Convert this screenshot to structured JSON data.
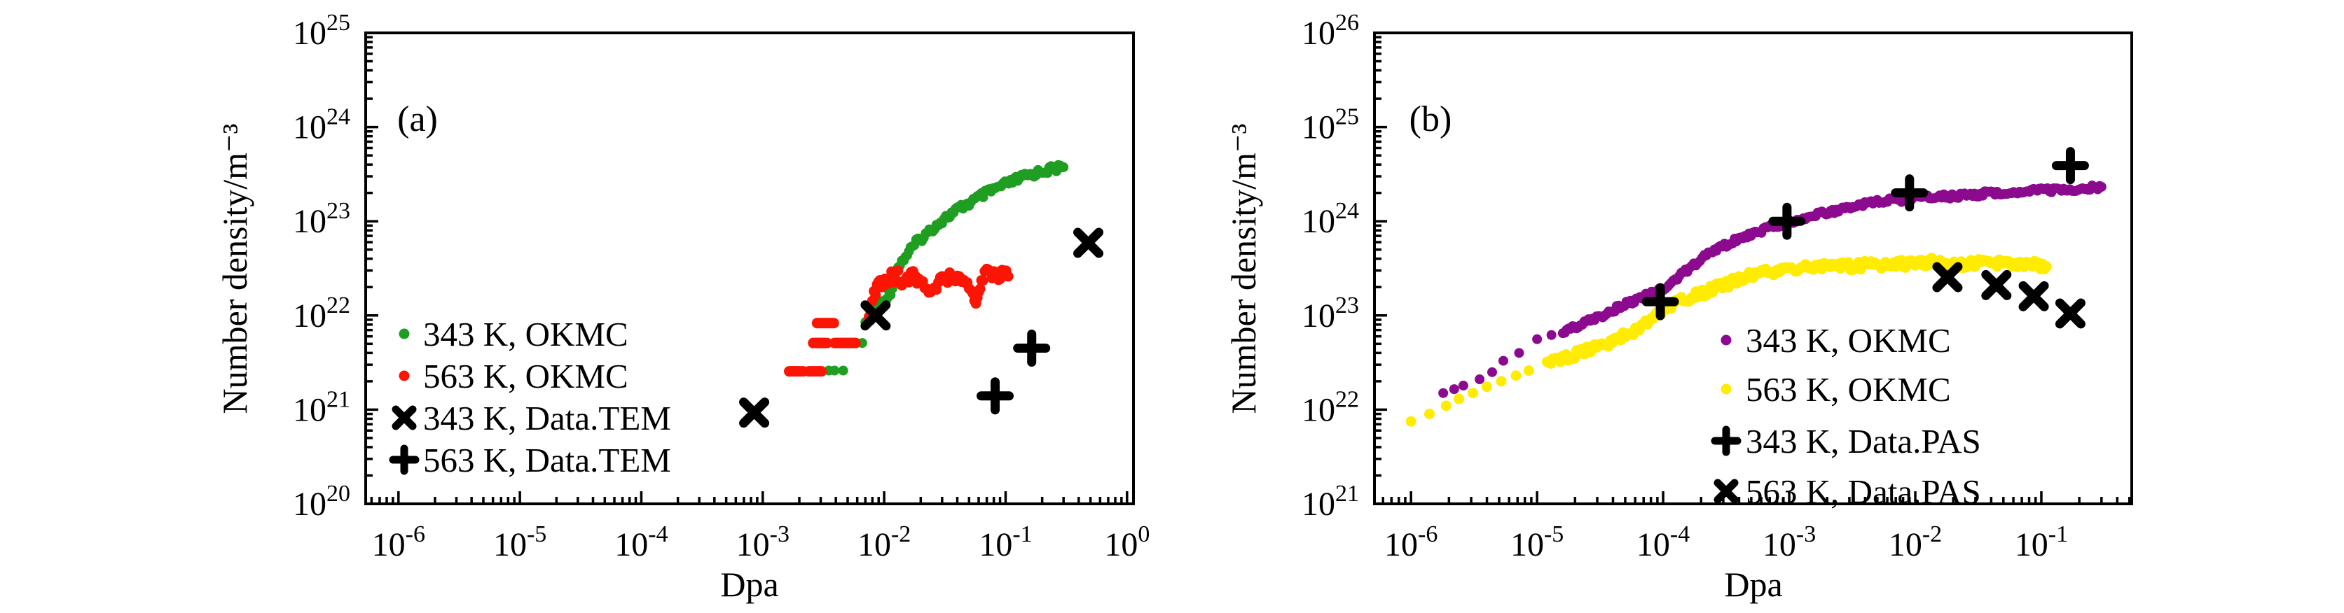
{
  "chart_data": [
    {
      "type": "scatter",
      "panel_label": "(a)",
      "xlabel": "Dpa",
      "ylabel": "Number density/m⁻³",
      "x_scale": "log",
      "y_scale": "log",
      "grid": false,
      "legend_position": "lower-left-inside",
      "x_tick_labels": [
        "10^-6",
        "10^-5",
        "10^-4",
        "10^-3",
        "10^-2",
        "10^-1",
        "10^0"
      ],
      "y_tick_labels": [
        "10^20",
        "10^21",
        "10^22",
        "10^23",
        "10^24",
        "10^25"
      ],
      "xlim_exp": [
        -6.27,
        0.053
      ],
      "ylim_exp": [
        20,
        25
      ],
      "series": [
        {
          "name": "343 K, OKMC",
          "color": "#1f9e21",
          "marker": "dot",
          "dot_radius": 7,
          "band_noise": 5,
          "sparse_points": [
            [
              0.0035,
              2.6e+21
            ],
            [
              0.0039,
              2.6e+21
            ],
            [
              0.0046,
              2.6e+21
            ],
            [
              0.0053,
              5.1e+21
            ],
            [
              0.0059,
              5.1e+21
            ],
            [
              0.0066,
              5.1e+21
            ],
            [
              0.007,
              8.5e+21
            ],
            [
              0.0074,
              8.5e+21
            ]
          ],
          "curve_points": [
            [
              0.0075,
              9e+21
            ],
            [
              0.0082,
              1.05e+22
            ],
            [
              0.009,
              1.2e+22
            ],
            [
              0.01,
              1.45e+22
            ],
            [
              0.0113,
              1.8e+22
            ],
            [
              0.0125,
              2.6e+22
            ],
            [
              0.013,
              3.2e+22
            ],
            [
              0.0145,
              4e+22
            ],
            [
              0.0165,
              5e+22
            ],
            [
              0.019,
              6.2e+22
            ],
            [
              0.022,
              7.2e+22
            ],
            [
              0.026,
              8.8e+22
            ],
            [
              0.03,
              1.02e+23
            ],
            [
              0.036,
              1.2e+23
            ],
            [
              0.043,
              1.4e+23
            ],
            [
              0.052,
              1.6e+23
            ],
            [
              0.063,
              1.85e+23
            ],
            [
              0.076,
              2.1e+23
            ],
            [
              0.092,
              2.35e+23
            ],
            [
              0.11,
              2.6e+23
            ],
            [
              0.135,
              2.9e+23
            ],
            [
              0.165,
              3.15e+23
            ],
            [
              0.2,
              3.4e+23
            ],
            [
              0.245,
              3.6e+23
            ],
            [
              0.3,
              3.75e+23
            ]
          ]
        },
        {
          "name": "563 K, OKMC",
          "color": "#fa1505",
          "marker": "dot",
          "dot_radius": 7.5,
          "band_noise": 9,
          "dash_segments": [
            [
              0.00165,
              0.0022,
              2.55e+21
            ],
            [
              0.0024,
              0.0031,
              2.55e+21
            ],
            [
              0.0026,
              0.0034,
              5.1e+21
            ],
            [
              0.0039,
              0.0059,
              5.1e+21
            ],
            [
              0.0028,
              0.0039,
              8.3e+21
            ]
          ],
          "curve_points": [
            [
              0.0075,
              1.05e+22
            ],
            [
              0.008,
              1.4e+22
            ],
            [
              0.0085,
              1.8e+22
            ],
            [
              0.009,
              2.05e+22
            ],
            [
              0.0095,
              2.2e+22
            ],
            [
              0.0105,
              2.45e+22
            ],
            [
              0.0115,
              2.65e+22
            ],
            [
              0.0125,
              2.6e+22
            ],
            [
              0.0135,
              2.55e+22
            ],
            [
              0.0145,
              2.3e+22
            ],
            [
              0.016,
              2.5e+22
            ],
            [
              0.018,
              2.6e+22
            ],
            [
              0.02,
              2.4e+22
            ],
            [
              0.0225,
              2e+22
            ],
            [
              0.025,
              1.65e+22
            ],
            [
              0.028,
              2.1e+22
            ],
            [
              0.032,
              2.5e+22
            ],
            [
              0.036,
              2.7e+22
            ],
            [
              0.04,
              2.5e+22
            ],
            [
              0.045,
              2.25e+22
            ],
            [
              0.05,
              2e+22
            ],
            [
              0.054,
              1.5e+22
            ],
            [
              0.057,
              1.15e+22
            ],
            [
              0.06,
              1.9e+22
            ],
            [
              0.065,
              2.4e+22
            ],
            [
              0.07,
              2.9e+22
            ],
            [
              0.075,
              3.1e+22
            ],
            [
              0.08,
              2.7e+22
            ],
            [
              0.085,
              2.45e+22
            ],
            [
              0.09,
              2.6e+22
            ],
            [
              0.097,
              2.8e+22
            ],
            [
              0.105,
              2.6e+22
            ]
          ]
        },
        {
          "name": "343 K, Data.TEM",
          "color": "#000000",
          "marker": "x",
          "points": [
            [
              0.00085,
              9.3e+20
            ],
            [
              0.0085,
              1e+22
            ],
            [
              0.48,
              5.9e+22
            ]
          ]
        },
        {
          "name": "563 K, Data.TEM",
          "color": "#000000",
          "marker": "plus",
          "points": [
            [
              0.082,
              1.4e+21
            ],
            [
              0.164,
              4.5e+21
            ]
          ]
        }
      ]
    },
    {
      "type": "scatter",
      "panel_label": "(b)",
      "xlabel": "Dpa",
      "ylabel": "Number density/m⁻³",
      "x_scale": "log",
      "y_scale": "log",
      "grid": false,
      "legend_position": "lower-right-inside",
      "x_tick_labels": [
        "10^-6",
        "10^-5",
        "10^-4",
        "10^-3",
        "10^-2",
        "10^-1"
      ],
      "y_tick_labels": [
        "10^21",
        "10^22",
        "10^23",
        "10^24",
        "10^25",
        "10^26"
      ],
      "xlim_exp": [
        -6.29,
        -0.283
      ],
      "ylim_exp": [
        21,
        26
      ],
      "series": [
        {
          "name": "343 K, OKMC",
          "color": "#8b0a8e",
          "marker": "dot",
          "dot_radius": 7,
          "band_noise": 3.5,
          "sparse_points": [
            [
              1.8e-06,
              1.5e+22
            ],
            [
              2.2e-06,
              1.65e+22
            ],
            [
              2.6e-06,
              1.8e+22
            ],
            [
              3.5e-06,
              2.1e+22
            ],
            [
              4.4e-06,
              2.5e+22
            ],
            [
              5.4e-06,
              3.3e+22
            ],
            [
              7.2e-06,
              4e+22
            ],
            [
              1e-05,
              5.6e+22
            ],
            [
              1.3e-05,
              6.2e+22
            ]
          ],
          "curve_points": [
            [
              1.6e-05,
              6.8e+22
            ],
            [
              2.2e-05,
              8e+22
            ],
            [
              3.2e-05,
              9.8e+22
            ],
            [
              4.6e-05,
              1.25e+23
            ],
            [
              6.8e-05,
              1.55e+23
            ],
            [
              0.0001,
              1.9e+23
            ],
            [
              0.00015,
              2.9e+23
            ],
            [
              0.00022,
              4.4e+23
            ],
            [
              0.00033,
              5.8e+23
            ],
            [
              0.00048,
              7.2e+23
            ],
            [
              0.0007,
              8.5e+23
            ],
            [
              0.001,
              9.7e+23
            ],
            [
              0.0015,
              1.12e+24
            ],
            [
              0.0022,
              1.28e+24
            ],
            [
              0.0033,
              1.45e+24
            ],
            [
              0.0048,
              1.58e+24
            ],
            [
              0.007,
              1.68e+24
            ],
            [
              0.01,
              1.75e+24
            ],
            [
              0.015,
              1.8e+24
            ],
            [
              0.022,
              1.87e+24
            ],
            [
              0.033,
              1.95e+24
            ],
            [
              0.048,
              2e+24
            ],
            [
              0.07,
              2.06e+24
            ],
            [
              0.1,
              2.12e+24
            ],
            [
              0.15,
              2.18e+24
            ],
            [
              0.22,
              2.25e+24
            ],
            [
              0.3,
              2.32e+24
            ]
          ]
        },
        {
          "name": "563 K, OKMC",
          "color": "#ffec00",
          "marker": "dot",
          "dot_radius": 7.5,
          "band_noise": 6,
          "sparse_points": [
            [
              1e-06,
              7.5e+21
            ],
            [
              1.4e-06,
              9e+21
            ],
            [
              1.9e-06,
              1.1e+22
            ],
            [
              2.4e-06,
              1.3e+22
            ],
            [
              3.1e-06,
              1.5e+22
            ],
            [
              4e-06,
              1.75e+22
            ],
            [
              5.2e-06,
              2e+22
            ],
            [
              6.8e-06,
              2.3e+22
            ],
            [
              8.6e-06,
              2.6e+22
            ]
          ],
          "curve_points": [
            [
              1.2e-05,
              3e+22
            ],
            [
              1.7e-05,
              3.5e+22
            ],
            [
              2.4e-05,
              4.2e+22
            ],
            [
              3.4e-05,
              4.9e+22
            ],
            [
              4.8e-05,
              6e+22
            ],
            [
              7e-05,
              7.8e+22
            ],
            [
              0.0001,
              1.1e+23
            ],
            [
              0.00015,
              1.5e+23
            ],
            [
              0.00022,
              1.8e+23
            ],
            [
              0.00033,
              2.2e+23
            ],
            [
              0.00048,
              2.6e+23
            ],
            [
              0.0007,
              2.9e+23
            ],
            [
              0.001,
              3.1e+23
            ],
            [
              0.0015,
              3.2e+23
            ],
            [
              0.0022,
              3.3e+23
            ],
            [
              0.0033,
              3.35e+23
            ],
            [
              0.0048,
              3.45e+23
            ],
            [
              0.007,
              3.5e+23
            ],
            [
              0.01,
              3.6e+23
            ],
            [
              0.014,
              3.7e+23
            ],
            [
              0.019,
              3.3e+23
            ],
            [
              0.024,
              3.5e+23
            ],
            [
              0.033,
              3.6e+23
            ],
            [
              0.048,
              3.65e+23
            ],
            [
              0.065,
              3.5e+23
            ],
            [
              0.085,
              3.45e+23
            ],
            [
              0.11,
              3.3e+23
            ]
          ]
        },
        {
          "name": "343 K, Data.PAS",
          "color": "#000000",
          "marker": "plus",
          "points": [
            [
              9.5e-05,
              1.4e+23
            ],
            [
              0.00096,
              1e+24
            ],
            [
              0.009,
              2e+24
            ],
            [
              0.17,
              3.9e+24
            ]
          ]
        },
        {
          "name": "563 K, Data.PAS",
          "color": "#000000",
          "marker": "x",
          "points": [
            [
              0.018,
              2.55e+23
            ],
            [
              0.044,
              2.1e+23
            ],
            [
              0.087,
              1.6e+23
            ],
            [
              0.17,
              1.05e+23
            ]
          ]
        }
      ]
    }
  ]
}
